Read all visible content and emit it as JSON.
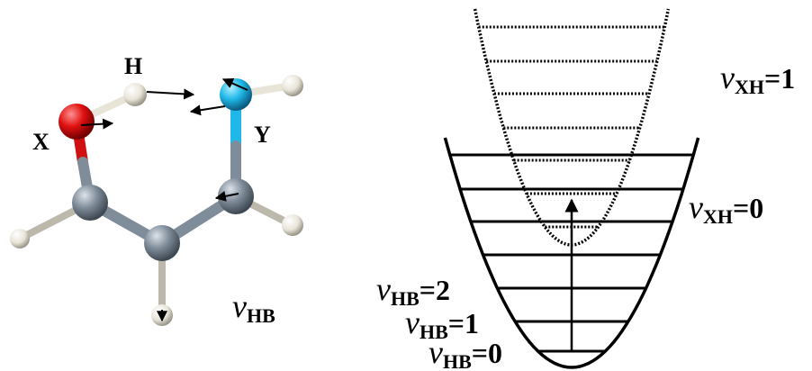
{
  "molecule": {
    "atom_labels": {
      "h": "H",
      "x": "X",
      "y": "Y"
    },
    "mode_label": {
      "symbol": "ν",
      "sub": "HB"
    }
  },
  "energy_levels": {
    "xh_1": {
      "symbol": "v",
      "sub": "XH",
      "suffix": "=1"
    },
    "xh_0": {
      "symbol": "v",
      "sub": "XH",
      "suffix": "=0"
    },
    "hb_2": {
      "symbol": "v",
      "sub": "HB",
      "suffix": "=2"
    },
    "hb_1": {
      "symbol": "v",
      "sub": "HB",
      "suffix": "=1"
    },
    "hb_0": {
      "symbol": "v",
      "sub": "HB",
      "suffix": "=0"
    }
  }
}
